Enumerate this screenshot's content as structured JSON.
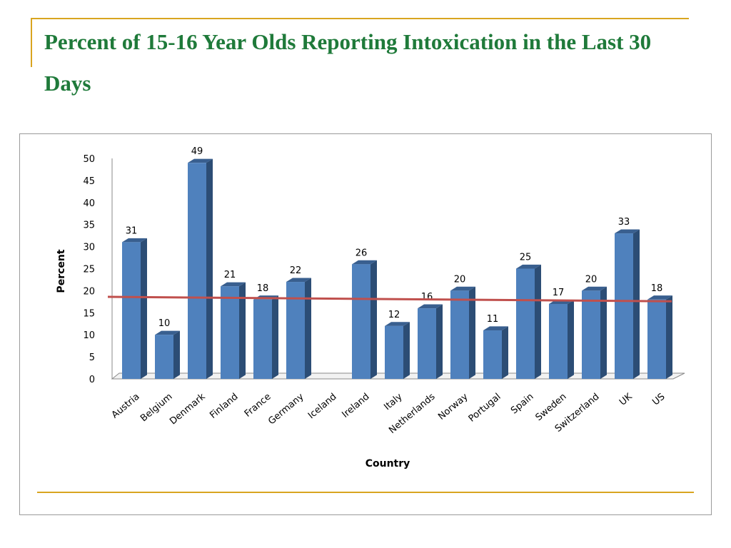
{
  "slide": {
    "title": "Percent of 15-16 Year Olds Reporting Intoxication in the Last 30 Days"
  },
  "colors": {
    "title": "#1f7a3a",
    "rule": "#d9a520",
    "bar_front": "#4f81bd",
    "bar_side": "#2c4d75",
    "bar_top": "#395f8f",
    "trendline": "#c0504d"
  },
  "chart_data": {
    "type": "bar",
    "title": "",
    "xlabel": "Country",
    "ylabel": "Percent",
    "ylim": [
      0,
      50
    ],
    "yticks": [
      0,
      5,
      10,
      15,
      20,
      25,
      30,
      35,
      40,
      45,
      50
    ],
    "grid": false,
    "legend": "none",
    "categories": [
      "Austria",
      "Belgium",
      "Denmark",
      "Finland",
      "France",
      "Germany",
      "Iceland",
      "Ireland",
      "Italy",
      "Netherlands",
      "Norway",
      "Portugal",
      "Spain",
      "Sweden",
      "Switzerland",
      "UK",
      "US"
    ],
    "values": [
      31,
      10,
      49,
      21,
      18,
      22,
      null,
      26,
      12,
      16,
      20,
      11,
      25,
      17,
      20,
      33,
      18
    ],
    "trendline": {
      "type": "linear",
      "start": 18.6,
      "end": 17.6
    }
  }
}
